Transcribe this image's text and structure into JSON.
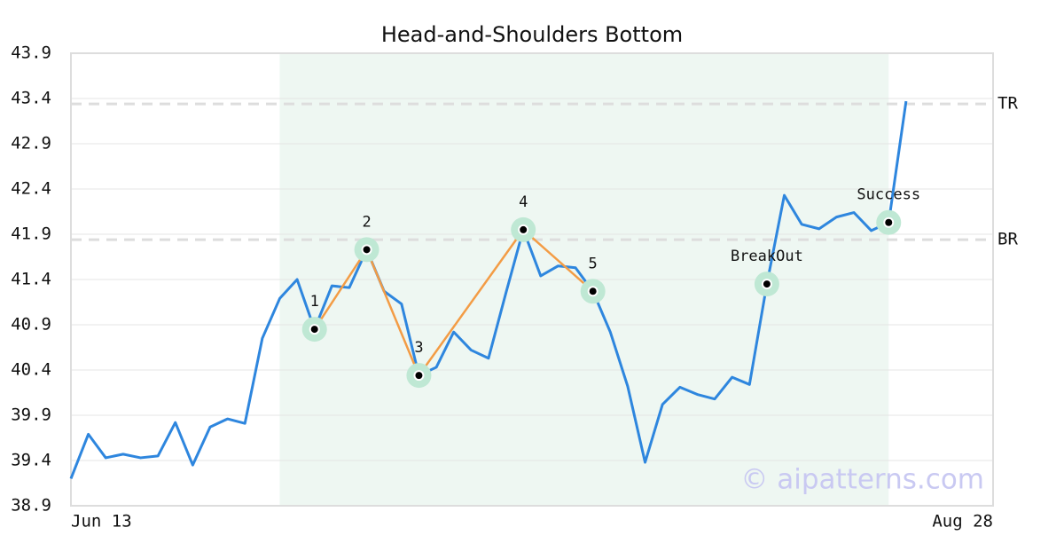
{
  "chart_data": {
    "type": "line",
    "title": "Head-and-Shoulders Bottom",
    "x": [
      0,
      1,
      2,
      3,
      4,
      5,
      6,
      7,
      8,
      9,
      10,
      11,
      12,
      13,
      14,
      15,
      16,
      17,
      18,
      19,
      20,
      21,
      22,
      23,
      24,
      25,
      26,
      27,
      28,
      29,
      30,
      31,
      32,
      33,
      34,
      35,
      36,
      37,
      38,
      39,
      40,
      41,
      42,
      43,
      44,
      45,
      46,
      47,
      48
    ],
    "series": [
      {
        "color": "#2e86de",
        "values": [
          39.2,
          39.69,
          39.43,
          39.47,
          39.43,
          39.45,
          39.82,
          39.35,
          39.77,
          39.86,
          39.81,
          40.75,
          41.19,
          41.4,
          40.85,
          41.33,
          41.31,
          41.73,
          41.27,
          41.13,
          40.34,
          40.43,
          40.82,
          40.62,
          40.53,
          41.25,
          41.95,
          41.44,
          41.55,
          41.53,
          41.27,
          40.82,
          40.22,
          39.38,
          40.02,
          40.21,
          40.13,
          40.08,
          40.32,
          40.24,
          41.35,
          42.33,
          42.01,
          41.96,
          42.09,
          42.14,
          41.94,
          42.03,
          43.37
        ]
      }
    ],
    "pattern": {
      "color": "#f39c45",
      "x": [
        14,
        17,
        20,
        26,
        30
      ],
      "values": [
        40.85,
        41.73,
        40.34,
        41.95,
        41.27
      ],
      "labels": [
        "1",
        "2",
        "3",
        "4",
        "5"
      ]
    },
    "events": [
      {
        "label": "BreakOut",
        "x": 40,
        "value": 41.35
      },
      {
        "label": "Success",
        "x": 47,
        "value": 42.03
      }
    ],
    "levels": [
      {
        "label": "TR",
        "value": 43.34
      },
      {
        "label": "BR",
        "value": 41.84
      }
    ],
    "shaded": [
      12,
      47
    ],
    "xlim": [
      0,
      53
    ],
    "xticks": [
      {
        "value": 0,
        "label": "Jun 13"
      },
      {
        "value": 53,
        "label": "Aug 28"
      }
    ],
    "ylim": [
      38.9,
      43.9
    ],
    "yticks": [
      38.9,
      39.4,
      39.9,
      40.4,
      40.9,
      41.4,
      41.9,
      42.4,
      42.9,
      43.4,
      43.9
    ],
    "grid": true,
    "watermark": "© aipatterns.com"
  }
}
